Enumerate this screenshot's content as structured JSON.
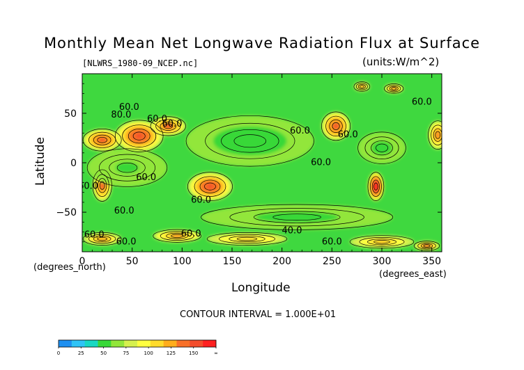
{
  "chart_data": {
    "type": "heatmap",
    "title": "Monthly Mean Net Longwave Radiation Flux at Surface",
    "subtitle_left": "[NLWRS_1980-09_NCEP.nc]",
    "subtitle_right": "(units:W/m^2)",
    "xlabel": "Longitude",
    "ylabel": "Latitude",
    "x_units": "(degrees_east)",
    "y_units": "(degrees_north)",
    "xlim": [
      0,
      360
    ],
    "ylim": [
      -90,
      90
    ],
    "x_ticks": [
      "0",
      "50",
      "100",
      "150",
      "200",
      "250",
      "300",
      "350"
    ],
    "y_ticks": [
      "50",
      "0",
      "−50"
    ],
    "contour_interval_text": "CONTOUR INTERVAL = 1.000E+01",
    "contour_labels": [
      {
        "text": "60.0",
        "lon": 47,
        "lat": 56
      },
      {
        "text": "80.0",
        "lon": 39,
        "lat": 48
      },
      {
        "text": "60.0",
        "lon": 75,
        "lat": 44
      },
      {
        "text": "60.0",
        "lon": 90,
        "lat": 39
      },
      {
        "text": "60.0",
        "lon": 218,
        "lat": 32
      },
      {
        "text": "60.0",
        "lon": 266,
        "lat": 28
      },
      {
        "text": "60.0",
        "lon": 239,
        "lat": 0
      },
      {
        "text": "60.0",
        "lon": 340,
        "lat": 61
      },
      {
        "text": "60.0",
        "lon": 6,
        "lat": -24
      },
      {
        "text": "60.0",
        "lon": 64,
        "lat": -15
      },
      {
        "text": "60.0",
        "lon": 119,
        "lat": -38
      },
      {
        "text": "60.0",
        "lon": 42,
        "lat": -49
      },
      {
        "text": "60.0",
        "lon": 12,
        "lat": -73
      },
      {
        "text": "60.0",
        "lon": 44,
        "lat": -80
      },
      {
        "text": "60.0",
        "lon": 109,
        "lat": -72
      },
      {
        "text": "40.0",
        "lon": 210,
        "lat": -69
      },
      {
        "text": "60.0",
        "lon": 250,
        "lat": -80
      }
    ],
    "colorbar": {
      "labels": [
        "0",
        "25",
        "50",
        "75",
        "100",
        "125",
        "150",
        "∞"
      ],
      "colors": [
        "#1e8ff0",
        "#2fc3f6",
        "#18d8c2",
        "#38d838",
        "#92e63a",
        "#d6f04e",
        "#ffff40",
        "#ffdb2c",
        "#ffad1c",
        "#f87028",
        "#f34d2c",
        "#ff2020"
      ]
    },
    "features": [
      {
        "lon": 128,
        "lat": -24,
        "value": 135,
        "spread_lon": 14,
        "spread_lat": 9
      },
      {
        "lon": 57,
        "lat": 27,
        "value": 135,
        "spread_lon": 15,
        "spread_lat": 10
      },
      {
        "lon": 20,
        "lat": 23,
        "value": 130,
        "spread_lon": 12,
        "spread_lat": 7
      },
      {
        "lon": 86,
        "lat": 37,
        "value": 125,
        "spread_lon": 11,
        "spread_lat": 6
      },
      {
        "lon": 20,
        "lat": -23,
        "value": 125,
        "spread_lon": 6,
        "spread_lat": 10
      },
      {
        "lon": 254,
        "lat": 37,
        "value": 130,
        "spread_lon": 9,
        "spread_lat": 9
      },
      {
        "lon": 294,
        "lat": -24,
        "value": 160,
        "spread_lon": 5,
        "spread_lat": 9
      },
      {
        "lon": 356,
        "lat": 28,
        "value": 120,
        "spread_lon": 6,
        "spread_lat": 9
      },
      {
        "lon": 312,
        "lat": 75,
        "value": 118,
        "spread_lon": 6,
        "spread_lat": 3
      },
      {
        "lon": 280,
        "lat": 77,
        "value": 110,
        "spread_lon": 5,
        "spread_lat": 3
      },
      {
        "lon": 168,
        "lat": 22,
        "value": 42,
        "spread_lon": 40,
        "spread_lat": 16
      },
      {
        "lon": 300,
        "lat": 15,
        "value": 45,
        "spread_lon": 15,
        "spread_lat": 10
      },
      {
        "lon": 45,
        "lat": -5,
        "value": 48,
        "spread_lon": 25,
        "spread_lat": 12
      },
      {
        "lon": 215,
        "lat": -55,
        "value": 44,
        "spread_lon": 60,
        "spread_lat": 8
      },
      {
        "lon": 20,
        "lat": -77,
        "value": 110,
        "spread_lon": 12,
        "spread_lat": 4
      },
      {
        "lon": 95,
        "lat": -74,
        "value": 115,
        "spread_lon": 15,
        "spread_lat": 4
      },
      {
        "lon": 165,
        "lat": -77,
        "value": 95,
        "spread_lon": 25,
        "spread_lat": 4
      },
      {
        "lon": 300,
        "lat": -80,
        "value": 100,
        "spread_lon": 20,
        "spread_lat": 4
      },
      {
        "lon": 345,
        "lat": -84,
        "value": 125,
        "spread_lon": 8,
        "spread_lat": 3
      }
    ],
    "background_value": 60
  }
}
